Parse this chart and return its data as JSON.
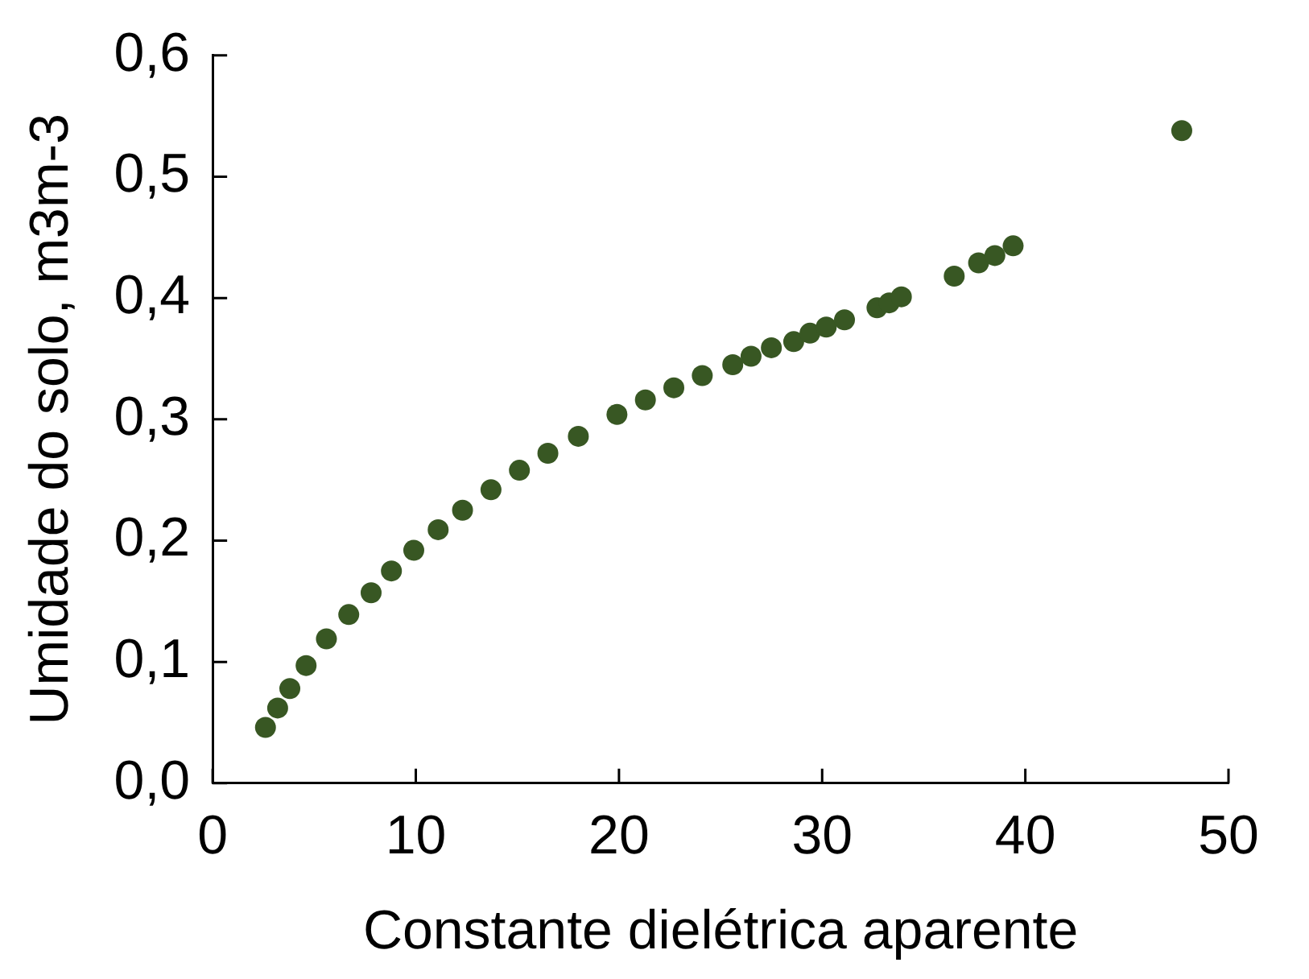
{
  "chart_data": {
    "type": "scatter",
    "xlabel": "Constante dielétrica aparente",
    "ylabel": "Umidade do solo, m3m-3",
    "x": [
      2.6,
      3.2,
      3.8,
      4.6,
      5.6,
      6.7,
      7.8,
      8.8,
      9.9,
      11.1,
      12.3,
      13.7,
      15.1,
      16.5,
      18.0,
      19.9,
      21.3,
      22.7,
      24.1,
      25.6,
      26.5,
      27.5,
      28.6,
      29.4,
      30.2,
      31.1,
      32.7,
      33.3,
      33.9,
      36.5,
      37.7,
      38.5,
      39.4,
      47.7
    ],
    "series": [
      {
        "color": "#385723",
        "values": [
          0.046,
          0.062,
          0.078,
          0.097,
          0.119,
          0.139,
          0.157,
          0.175,
          0.192,
          0.209,
          0.225,
          0.242,
          0.258,
          0.272,
          0.286,
          0.304,
          0.316,
          0.326,
          0.336,
          0.345,
          0.352,
          0.359,
          0.364,
          0.371,
          0.376,
          0.382,
          0.392,
          0.396,
          0.401,
          0.418,
          0.429,
          0.435,
          0.443,
          0.538
        ]
      }
    ],
    "xlim": [
      0,
      50
    ],
    "xticks": [
      0,
      10,
      20,
      30,
      40,
      50
    ],
    "ylim": [
      0,
      0.6
    ],
    "yticks": [
      {
        "value": 0,
        "label": "0,0"
      },
      {
        "value": 0.1,
        "label": "0,1"
      },
      {
        "value": 0.2,
        "label": "0,2"
      },
      {
        "value": 0.3,
        "label": "0,3"
      },
      {
        "value": 0.4,
        "label": "0,4"
      },
      {
        "value": 0.5,
        "label": "0,5"
      },
      {
        "value": 0.6,
        "label": "0,6"
      }
    ],
    "marker": "circle",
    "grid": false,
    "legend": false
  }
}
